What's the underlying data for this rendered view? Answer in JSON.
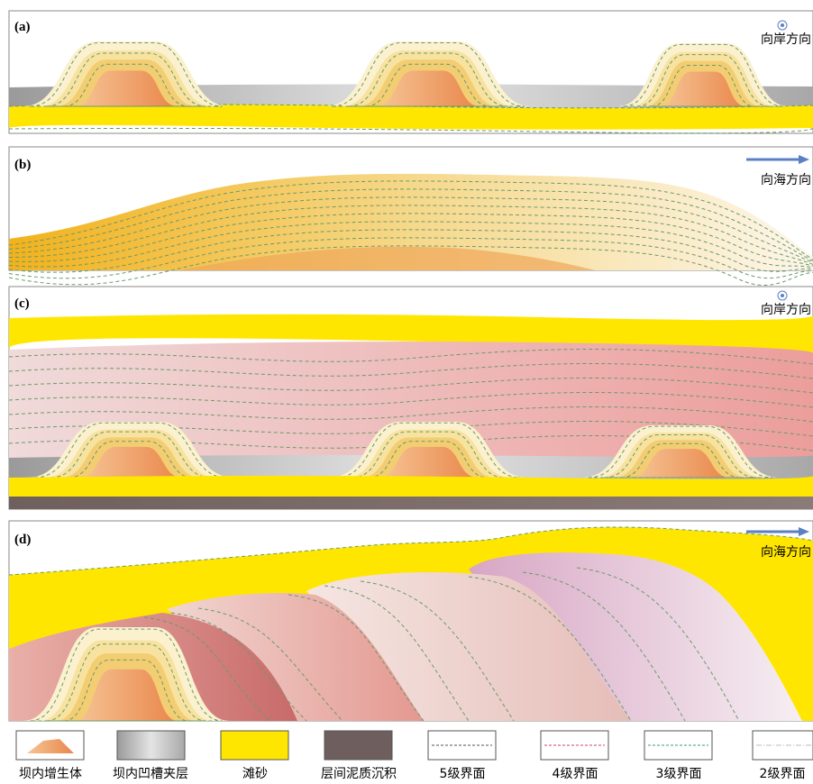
{
  "panels": [
    {
      "label": "(a)",
      "direction": "向岸方向"
    },
    {
      "label": "(b)",
      "direction": "向海方向"
    },
    {
      "label": "(c)",
      "direction": "向岸方向"
    },
    {
      "label": "(d)",
      "direction": "向海方向"
    }
  ],
  "legend": [
    "坝内增生体",
    "坝内凹槽夹层",
    "滩砂",
    "层间泥质沉积",
    "5级界面",
    "4级界面",
    "3级界面",
    "2级界面"
  ]
}
